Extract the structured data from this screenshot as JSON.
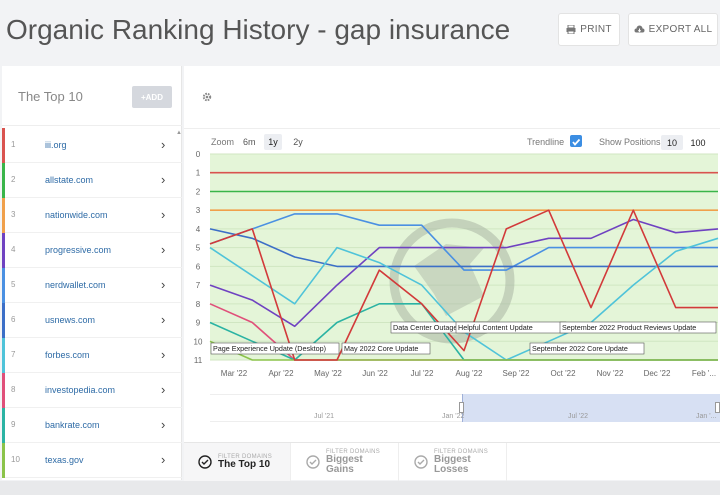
{
  "header": {
    "title": "Organic Ranking History - gap insurance",
    "print_label": "PRINT",
    "export_label": "EXPORT ALL"
  },
  "sidebar": {
    "title": "The Top 10",
    "add_label": "+ADD",
    "items": [
      {
        "rank": "1",
        "domain": "iii.org",
        "color": "#d9534f"
      },
      {
        "rank": "2",
        "domain": "allstate.com",
        "color": "#3ab54a"
      },
      {
        "rank": "3",
        "domain": "nationwide.com",
        "color": "#f0a04b"
      },
      {
        "rank": "4",
        "domain": "progressive.com",
        "color": "#6f42c1"
      },
      {
        "rank": "5",
        "domain": "nerdwallet.com",
        "color": "#4a90e2"
      },
      {
        "rank": "6",
        "domain": "usnews.com",
        "color": "#3c6fc7"
      },
      {
        "rank": "7",
        "domain": "forbes.com",
        "color": "#4fc3d9"
      },
      {
        "rank": "8",
        "domain": "investopedia.com",
        "color": "#e0507a"
      },
      {
        "rank": "9",
        "domain": "bankrate.com",
        "color": "#2bb3a3"
      },
      {
        "rank": "10",
        "domain": "texas.gov",
        "color": "#8bc34a"
      }
    ]
  },
  "controls": {
    "zoom_label": "Zoom",
    "zoom_options": [
      "6m",
      "1y",
      "2y"
    ],
    "zoom_selected": "1y",
    "trendline_label": "Trendline",
    "trendline_checked": true,
    "positions_label": "Show Positions",
    "positions_options": [
      "10",
      "100"
    ],
    "positions_selected": "10"
  },
  "chart_data": {
    "type": "line",
    "y_ticks": [
      "0",
      "1",
      "2",
      "3",
      "4",
      "5",
      "6",
      "7",
      "8",
      "9",
      "10",
      "11"
    ],
    "ylim": [
      0,
      11
    ],
    "y_inverted": true,
    "x_ticks": [
      "Mar '22",
      "Apr '22",
      "May '22",
      "Jun '22",
      "Jul '22",
      "Aug '22",
      "Sep '22",
      "Oct '22",
      "Nov '22",
      "Dec '22",
      "Feb '..."
    ],
    "series": [
      {
        "name": "iii.org",
        "color": "#d9534f",
        "values": [
          1,
          1,
          1,
          1,
          1,
          1,
          1,
          1,
          1,
          1,
          1,
          1,
          1
        ]
      },
      {
        "name": "allstate.com",
        "color": "#3ab54a",
        "values": [
          2,
          2,
          2,
          2,
          2,
          2,
          2,
          2,
          2,
          2,
          2,
          2,
          2
        ]
      },
      {
        "name": "nationwide.com",
        "color": "#f0a04b",
        "values": [
          3,
          3,
          3,
          3,
          3,
          3,
          3,
          3,
          3,
          3,
          3,
          3,
          3
        ]
      },
      {
        "name": "progressive.com",
        "color": "#6f42c1",
        "values": [
          7,
          7.8,
          9.2,
          7,
          5,
          5,
          5,
          5,
          4.5,
          4.5,
          3.5,
          4.2,
          4
        ]
      },
      {
        "name": "nerdwallet.com",
        "color": "#4a90e2",
        "values": [
          4.8,
          4,
          3.2,
          3.2,
          3.8,
          3.8,
          6.2,
          6.2,
          5,
          5,
          5,
          5,
          5
        ]
      },
      {
        "name": "usnews.com",
        "color": "#3c6fc7",
        "values": [
          4,
          4.5,
          5.5,
          6,
          6,
          6,
          6,
          6,
          6,
          6,
          6,
          6,
          6
        ]
      },
      {
        "name": "forbes.com",
        "color": "#4fc3d9",
        "values": [
          5,
          6.5,
          8,
          5,
          5.8,
          7,
          9.5,
          11,
          10,
          9,
          7,
          5.2,
          4.5
        ]
      },
      {
        "name": "investopedia.com",
        "color": "#e0507a",
        "values": [
          8,
          9,
          11,
          11,
          11,
          11,
          11,
          11,
          11,
          11,
          11,
          11,
          11
        ]
      },
      {
        "name": "bankrate.com",
        "color": "#2bb3a3",
        "values": [
          9,
          10,
          11,
          9,
          8,
          8,
          11,
          11,
          11,
          11,
          11,
          11,
          11
        ]
      },
      {
        "name": "texas.gov",
        "color": "#8bc34a",
        "values": [
          10,
          11,
          11,
          11,
          11,
          11,
          11,
          11,
          11,
          11,
          11,
          11,
          11
        ]
      },
      {
        "name": "",
        "color": "#d23a3a",
        "values": [
          4.8,
          4,
          11,
          11,
          6.2,
          8,
          10.5,
          4,
          3,
          8.2,
          3,
          8.2,
          8.2
        ]
      }
    ],
    "annotations": [
      "Data Center Outage",
      "Helpful Content Update",
      "September 2022 Product Reviews Update",
      "Page Experience Update (Desktop)",
      "May 2022 Core Update",
      "September 2022 Core Update"
    ],
    "navigator_labels": [
      "Jul '21",
      "Jan '22",
      "Jul '22",
      "Jan '..."
    ]
  },
  "tabs": [
    {
      "small": "FILTER DOMAINS",
      "big": "The Top 10",
      "active": true
    },
    {
      "small": "FILTER DOMAINS",
      "big": "Biggest",
      "big2": "Gains",
      "active": false
    },
    {
      "small": "FILTER DOMAINS",
      "big": "Biggest",
      "big2": "Losses",
      "active": false
    }
  ]
}
